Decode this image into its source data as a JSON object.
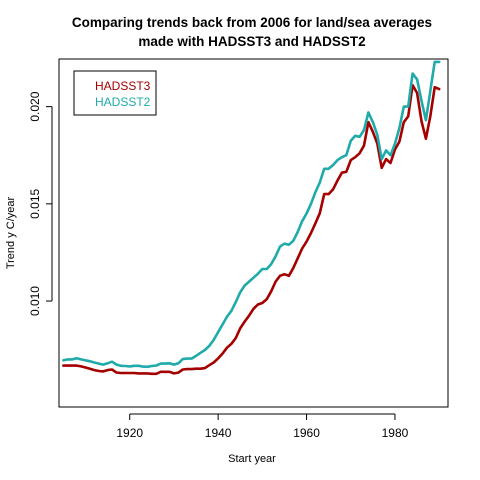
{
  "chart_data": {
    "type": "line",
    "title_lines": [
      "Comparing trends back from 2006 for land/sea averages",
      "made with HADSST3 and HADSST2"
    ],
    "xlabel": "Start year",
    "ylabel": "Trend y C/year",
    "xlim": [
      1904,
      1992
    ],
    "ylim": [
      0.00455,
      0.02245
    ],
    "x_ticks": [
      1920,
      1940,
      1960,
      1980
    ],
    "y_ticks": [
      0.01,
      0.015,
      0.02
    ],
    "y_tick_labels": [
      "0.010",
      "0.015",
      "0.020"
    ],
    "legend_position": "top-left",
    "grid": false,
    "series": [
      {
        "name": "HADSST3",
        "color": "#a50000",
        "x": [
          1905,
          1906,
          1907,
          1908,
          1909,
          1910,
          1911,
          1912,
          1913,
          1914,
          1915,
          1916,
          1917,
          1918,
          1919,
          1920,
          1921,
          1922,
          1923,
          1924,
          1925,
          1926,
          1927,
          1928,
          1929,
          1930,
          1931,
          1932,
          1933,
          1934,
          1935,
          1936,
          1937,
          1938,
          1939,
          1940,
          1941,
          1942,
          1943,
          1944,
          1945,
          1946,
          1947,
          1948,
          1949,
          1950,
          1951,
          1952,
          1953,
          1954,
          1955,
          1956,
          1957,
          1958,
          1959,
          1960,
          1961,
          1962,
          1963,
          1964,
          1965,
          1966,
          1967,
          1968,
          1969,
          1970,
          1971,
          1972,
          1973,
          1974,
          1975,
          1976,
          1977,
          1978,
          1979,
          1980,
          1981,
          1982,
          1983,
          1984,
          1985,
          1986,
          1987,
          1988,
          1989,
          1990
        ],
        "values": [
          0.00668,
          0.00668,
          0.00668,
          0.00668,
          0.00664,
          0.00658,
          0.00652,
          0.00645,
          0.0064,
          0.00638,
          0.00645,
          0.00648,
          0.00632,
          0.0063,
          0.0063,
          0.0063,
          0.0063,
          0.00628,
          0.00628,
          0.00628,
          0.00626,
          0.00626,
          0.00636,
          0.00636,
          0.00636,
          0.00628,
          0.00632,
          0.00648,
          0.0065,
          0.0065,
          0.00652,
          0.00652,
          0.00655,
          0.0067,
          0.00684,
          0.00705,
          0.0073,
          0.0076,
          0.0078,
          0.0081,
          0.0086,
          0.00895,
          0.00925,
          0.0096,
          0.00982,
          0.0099,
          0.0101,
          0.0105,
          0.011,
          0.0113,
          0.01138,
          0.0113,
          0.0117,
          0.0122,
          0.0127,
          0.01305,
          0.0135,
          0.014,
          0.01452,
          0.0155,
          0.0155,
          0.01575,
          0.0162,
          0.0166,
          0.01665,
          0.01725,
          0.0174,
          0.0176,
          0.018,
          0.0192,
          0.0187,
          0.0181,
          0.01685,
          0.0173,
          0.0171,
          0.0178,
          0.0182,
          0.0192,
          0.0195,
          0.0211,
          0.0207,
          0.01925,
          0.01835,
          0.0195,
          0.021,
          0.0209
        ]
      },
      {
        "name": "HADSST2",
        "color": "#20aaaa",
        "x": [
          1905,
          1906,
          1907,
          1908,
          1909,
          1910,
          1911,
          1912,
          1913,
          1914,
          1915,
          1916,
          1917,
          1918,
          1919,
          1920,
          1921,
          1922,
          1923,
          1924,
          1925,
          1926,
          1927,
          1928,
          1929,
          1930,
          1931,
          1932,
          1933,
          1934,
          1935,
          1936,
          1937,
          1938,
          1939,
          1940,
          1941,
          1942,
          1943,
          1944,
          1945,
          1946,
          1947,
          1948,
          1949,
          1950,
          1951,
          1952,
          1953,
          1954,
          1955,
          1956,
          1957,
          1958,
          1959,
          1960,
          1961,
          1962,
          1963,
          1964,
          1965,
          1966,
          1967,
          1968,
          1969,
          1970,
          1971,
          1972,
          1973,
          1974,
          1975,
          1976,
          1977,
          1978,
          1979,
          1980,
          1981,
          1982,
          1983,
          1984,
          1985,
          1986,
          1987,
          1988,
          1989,
          1990
        ],
        "values": [
          0.00695,
          0.007,
          0.007,
          0.00706,
          0.007,
          0.00695,
          0.0069,
          0.00684,
          0.00678,
          0.00673,
          0.0068,
          0.00688,
          0.00673,
          0.00667,
          0.00666,
          0.00664,
          0.00667,
          0.00667,
          0.00663,
          0.00662,
          0.00666,
          0.00668,
          0.00678,
          0.00678,
          0.0068,
          0.00673,
          0.0068,
          0.00702,
          0.00704,
          0.00704,
          0.00718,
          0.00734,
          0.00748,
          0.0077,
          0.008,
          0.0084,
          0.0088,
          0.0092,
          0.0095,
          0.00995,
          0.01045,
          0.0108,
          0.011,
          0.0112,
          0.0114,
          0.01165,
          0.01165,
          0.0119,
          0.0123,
          0.0128,
          0.01295,
          0.0129,
          0.0131,
          0.01355,
          0.0141,
          0.0145,
          0.015,
          0.0156,
          0.0161,
          0.0168,
          0.0168,
          0.017,
          0.01725,
          0.0174,
          0.0175,
          0.01825,
          0.0185,
          0.01845,
          0.0188,
          0.0197,
          0.0192,
          0.01855,
          0.0173,
          0.01775,
          0.0175,
          0.0181,
          0.0189,
          0.02,
          0.02,
          0.0217,
          0.0214,
          0.0203,
          0.0193,
          0.0208,
          0.0223,
          0.0223
        ]
      }
    ]
  }
}
